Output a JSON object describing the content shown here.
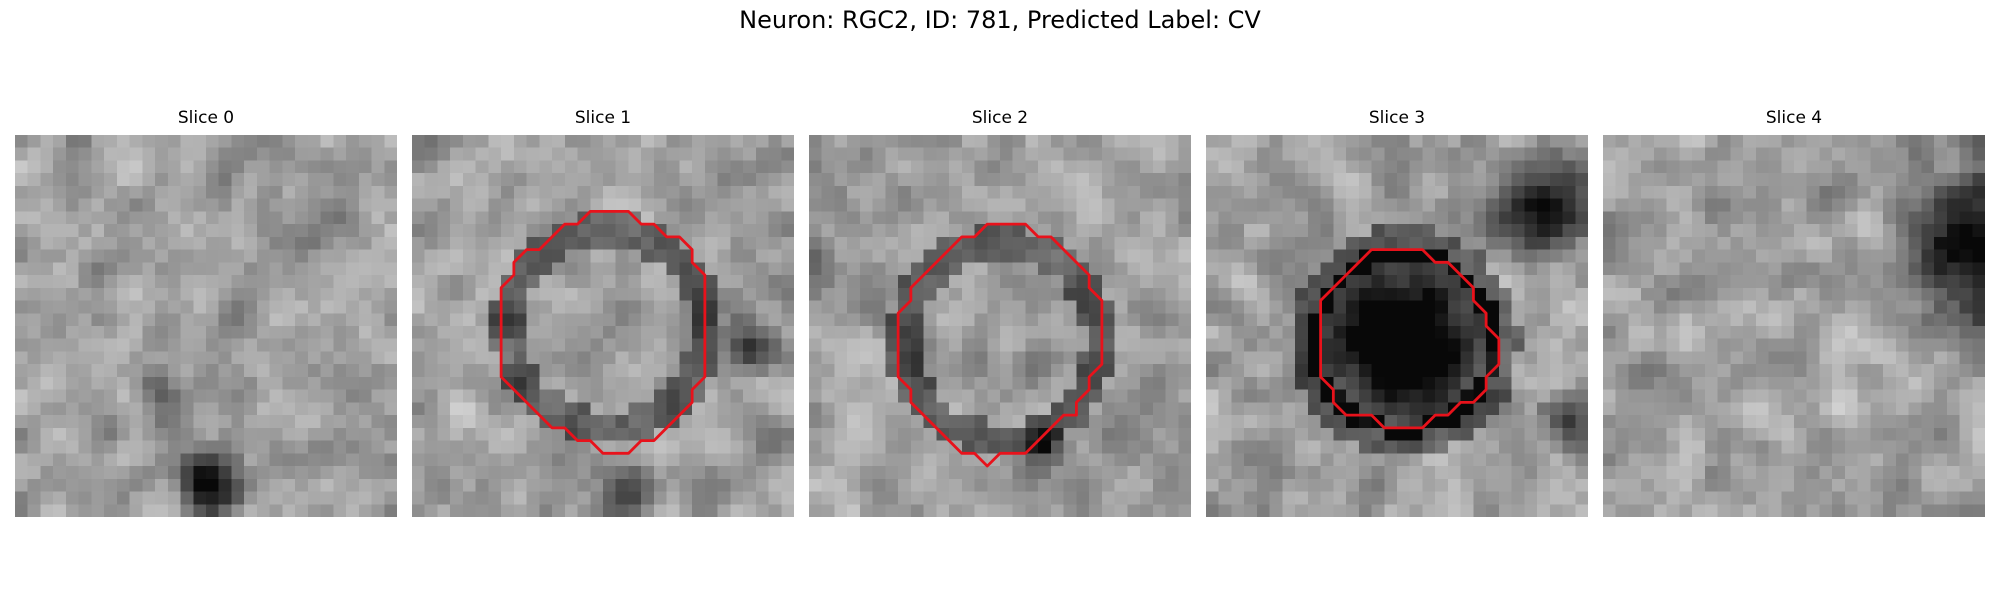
{
  "figure": {
    "title": "Neuron: RGC2, ID: 781, Predicted Label: CV",
    "contour_color": "#e8121b",
    "grid_size": 30,
    "panels": [
      {
        "title": "Slice 0",
        "has_contour": false,
        "seed": 11,
        "dark_spots": [
          {
            "x": 15,
            "y": 27,
            "r": 3.5,
            "s": 0.8
          },
          {
            "x": 11,
            "y": 20,
            "r": 3,
            "s": 0.25
          }
        ]
      },
      {
        "title": "Slice 1",
        "has_contour": true,
        "seed": 23,
        "contour": [
          [
            16,
            6
          ],
          [
            17,
            6
          ],
          [
            18,
            7
          ],
          [
            19,
            7
          ],
          [
            20,
            8
          ],
          [
            21,
            8
          ],
          [
            22,
            9
          ],
          [
            22,
            10
          ],
          [
            23,
            11
          ],
          [
            23,
            12
          ],
          [
            23,
            13
          ],
          [
            23,
            14
          ],
          [
            23,
            15
          ],
          [
            23,
            16
          ],
          [
            23,
            17
          ],
          [
            23,
            18
          ],
          [
            23,
            19
          ],
          [
            22,
            20
          ],
          [
            22,
            21
          ],
          [
            21,
            22
          ],
          [
            20,
            23
          ],
          [
            19,
            24
          ],
          [
            18,
            24
          ],
          [
            17,
            25
          ],
          [
            16,
            25
          ],
          [
            15,
            25
          ],
          [
            14,
            24
          ],
          [
            13,
            24
          ],
          [
            12,
            23
          ],
          [
            11,
            23
          ],
          [
            10,
            22
          ],
          [
            9,
            21
          ],
          [
            8,
            20
          ],
          [
            7,
            19
          ],
          [
            7,
            18
          ],
          [
            7,
            17
          ],
          [
            7,
            16
          ],
          [
            7,
            15
          ],
          [
            7,
            14
          ],
          [
            7,
            13
          ],
          [
            7,
            12
          ],
          [
            8,
            11
          ],
          [
            8,
            10
          ],
          [
            9,
            9
          ],
          [
            10,
            9
          ],
          [
            11,
            8
          ],
          [
            12,
            7
          ],
          [
            13,
            7
          ],
          [
            14,
            6
          ],
          [
            15,
            6
          ]
        ],
        "dark_spots": [
          {
            "x": 26,
            "y": 16,
            "r": 3,
            "s": 0.45
          },
          {
            "x": 17,
            "y": 28,
            "r": 3,
            "s": 0.35
          }
        ]
      },
      {
        "title": "Slice 2",
        "has_contour": true,
        "seed": 37,
        "contour": [
          [
            14,
            7
          ],
          [
            15,
            7
          ],
          [
            16,
            7
          ],
          [
            17,
            7
          ],
          [
            18,
            8
          ],
          [
            19,
            8
          ],
          [
            20,
            9
          ],
          [
            21,
            10
          ],
          [
            22,
            11
          ],
          [
            22,
            12
          ],
          [
            23,
            13
          ],
          [
            23,
            14
          ],
          [
            23,
            15
          ],
          [
            23,
            16
          ],
          [
            23,
            17
          ],
          [
            23,
            18
          ],
          [
            22,
            19
          ],
          [
            22,
            20
          ],
          [
            21,
            21
          ],
          [
            21,
            22
          ],
          [
            20,
            22
          ],
          [
            19,
            23
          ],
          [
            18,
            24
          ],
          [
            17,
            25
          ],
          [
            16,
            25
          ],
          [
            15,
            25
          ],
          [
            14,
            26
          ],
          [
            13,
            25
          ],
          [
            12,
            25
          ],
          [
            11,
            24
          ],
          [
            10,
            23
          ],
          [
            9,
            22
          ],
          [
            8,
            21
          ],
          [
            8,
            20
          ],
          [
            7,
            19
          ],
          [
            7,
            18
          ],
          [
            7,
            17
          ],
          [
            7,
            16
          ],
          [
            7,
            15
          ],
          [
            7,
            14
          ],
          [
            8,
            13
          ],
          [
            8,
            12
          ],
          [
            9,
            11
          ],
          [
            10,
            10
          ],
          [
            11,
            9
          ],
          [
            12,
            8
          ],
          [
            13,
            8
          ]
        ],
        "dark_spots": [
          {
            "x": 18,
            "y": 24,
            "r": 2.5,
            "s": 0.4
          }
        ]
      },
      {
        "title": "Slice 3",
        "has_contour": true,
        "seed": 49,
        "contour": [
          [
            13,
            9
          ],
          [
            14,
            9
          ],
          [
            15,
            9
          ],
          [
            16,
            9
          ],
          [
            17,
            9
          ],
          [
            18,
            10
          ],
          [
            19,
            10
          ],
          [
            20,
            11
          ],
          [
            21,
            12
          ],
          [
            21,
            13
          ],
          [
            22,
            14
          ],
          [
            22,
            15
          ],
          [
            23,
            16
          ],
          [
            23,
            17
          ],
          [
            23,
            18
          ],
          [
            22,
            19
          ],
          [
            22,
            20
          ],
          [
            21,
            21
          ],
          [
            20,
            21
          ],
          [
            19,
            22
          ],
          [
            18,
            22
          ],
          [
            17,
            23
          ],
          [
            16,
            23
          ],
          [
            15,
            23
          ],
          [
            14,
            23
          ],
          [
            13,
            22
          ],
          [
            12,
            22
          ],
          [
            11,
            22
          ],
          [
            10,
            21
          ],
          [
            10,
            20
          ],
          [
            9,
            19
          ],
          [
            9,
            18
          ],
          [
            9,
            17
          ],
          [
            9,
            16
          ],
          [
            9,
            15
          ],
          [
            9,
            14
          ],
          [
            9,
            13
          ],
          [
            10,
            12
          ],
          [
            11,
            11
          ],
          [
            12,
            10
          ]
        ],
        "dark_spots": [
          {
            "x": 15,
            "y": 16,
            "r": 6,
            "s": 0.6
          },
          {
            "x": 26,
            "y": 5,
            "r": 6,
            "s": 0.65
          },
          {
            "x": 28,
            "y": 22,
            "r": 3,
            "s": 0.45
          }
        ]
      },
      {
        "title": "Slice 4",
        "has_contour": false,
        "seed": 61,
        "dark_spots": [
          {
            "x": 29,
            "y": 8,
            "r": 9,
            "s": 0.65
          }
        ]
      }
    ]
  }
}
